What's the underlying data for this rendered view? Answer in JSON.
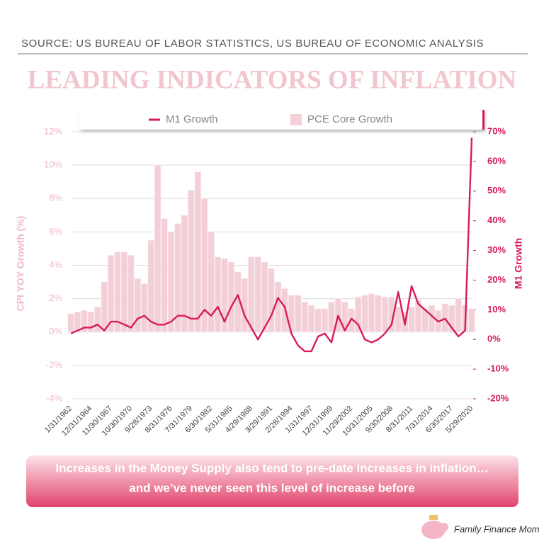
{
  "chart_data": {
    "type": "combo",
    "source": "SOURCE: US BUREAU OF LABOR STATISTICS, US BUREAU OF ECONOMIC ANALYSIS",
    "title": "LEADING INDICATORS OF INFLATION",
    "ylabel": "CPI YOY Growth (%)",
    "y2label": "M1 Growth",
    "categories": [
      "1/31/1962",
      null,
      null,
      "12/31/1964",
      null,
      null,
      "11/30/1967",
      null,
      null,
      "10/30/1970",
      null,
      null,
      "9/28/1973",
      null,
      null,
      "8/31/1976",
      null,
      null,
      "7/31/1979",
      null,
      null,
      "6/30/1982",
      null,
      null,
      "5/31/1985",
      null,
      null,
      "4/29/1988",
      null,
      null,
      "3/29/1991",
      null,
      null,
      "2/28/1994",
      null,
      null,
      "1/31/1997",
      null,
      null,
      "12/31/1999",
      null,
      null,
      "11/29/2002",
      null,
      null,
      "10/31/2005",
      null,
      null,
      "9/30/2008",
      null,
      null,
      "8/31/2011",
      null,
      null,
      "7/31/2014",
      null,
      null,
      "6/30/2017",
      null,
      null,
      "5/29/2020"
    ],
    "series": [
      {
        "name": "PCE Core Growth",
        "type": "bar",
        "color": "#f3d0d7",
        "values": [
          1.1,
          1.2,
          1.3,
          1.2,
          1.5,
          3.0,
          4.6,
          4.8,
          4.8,
          4.6,
          3.2,
          2.9,
          5.5,
          10.0,
          6.8,
          6.0,
          6.5,
          7.0,
          8.5,
          9.6,
          8.0,
          6.0,
          4.5,
          4.4,
          4.2,
          3.6,
          3.2,
          4.5,
          4.5,
          4.2,
          3.8,
          3.0,
          2.6,
          2.2,
          2.2,
          1.8,
          1.6,
          1.4,
          1.4,
          1.8,
          2.0,
          1.8,
          1.4,
          2.1,
          2.2,
          2.3,
          2.2,
          2.1,
          2.1,
          1.5,
          1.2,
          1.5,
          1.9,
          1.4,
          1.6,
          1.3,
          1.7,
          1.6,
          2.0,
          1.6,
          1.4
        ]
      },
      {
        "name": "M1 Growth",
        "type": "line",
        "axis": "y2",
        "color": "#d81b5a",
        "values": [
          2,
          3,
          4,
          4,
          5,
          3,
          6,
          6,
          5,
          4,
          7,
          8,
          6,
          5,
          5,
          6,
          8,
          8,
          7,
          7,
          10,
          8,
          11,
          6,
          11,
          15,
          8,
          4,
          0,
          4,
          8,
          14,
          11,
          2,
          -2,
          -4,
          -4,
          1,
          2,
          -1,
          8,
          3,
          7,
          5,
          0,
          -1,
          0,
          2,
          5,
          16,
          5,
          18,
          12,
          10,
          8,
          6,
          7,
          4,
          1,
          3,
          68
        ]
      }
    ],
    "ylim": [
      -4,
      12
    ],
    "yticks": [
      {
        "value": -4,
        "label": "-4%"
      },
      {
        "value": -2,
        "label": "-2%"
      },
      {
        "value": 0,
        "label": "0%"
      },
      {
        "value": 2,
        "label": "2%"
      },
      {
        "value": 4,
        "label": "4%"
      },
      {
        "value": 6,
        "label": "6%"
      },
      {
        "value": 8,
        "label": "8%"
      },
      {
        "value": 10,
        "label": "10%"
      },
      {
        "value": 12,
        "label": "12%"
      }
    ],
    "y2lim": [
      -20,
      70
    ],
    "y2ticks": [
      {
        "value": -20,
        "label": "-20%"
      },
      {
        "value": -10,
        "label": "-10%"
      },
      {
        "value": 0,
        "label": "0%"
      },
      {
        "value": 10,
        "label": "10%"
      },
      {
        "value": 20,
        "label": "20%"
      },
      {
        "value": 30,
        "label": "30%"
      },
      {
        "value": 40,
        "label": "40%"
      },
      {
        "value": 50,
        "label": "50%"
      },
      {
        "value": 60,
        "label": "60%"
      },
      {
        "value": 70,
        "label": "70%"
      }
    ],
    "grid": true,
    "legend": "top",
    "annotations": [
      "Increases in the Money Supply also tend to pre-date increases in inflation…",
      "and we’ve never seen this level of increase before"
    ],
    "brand": "Family Finance Mom"
  }
}
